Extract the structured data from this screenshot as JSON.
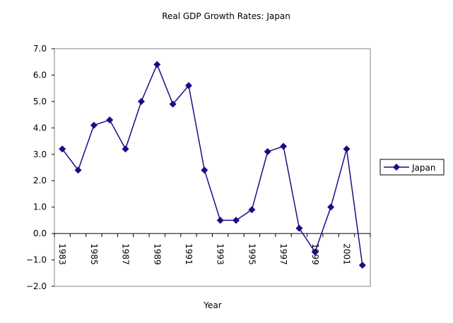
{
  "chart_data": {
    "type": "line",
    "title": "Real GDP Growth Rates: Japan",
    "xlabel": "Year",
    "ylabel": "",
    "ylim": [
      -2.0,
      7.0
    ],
    "yticks": [
      "-2.0",
      "-1.0",
      "0.0",
      "1.0",
      "2.0",
      "3.0",
      "4.0",
      "5.0",
      "6.0",
      "7.0"
    ],
    "grid": false,
    "legend": "right",
    "categories": [
      "1983",
      "1984",
      "1985",
      "1986",
      "1987",
      "1988",
      "1989",
      "1990",
      "1991",
      "1992",
      "1993",
      "1994",
      "1995",
      "1996",
      "1997",
      "1998",
      "1999",
      "2000",
      "2001",
      "2002"
    ],
    "xtick_labels": [
      "1983",
      "1985",
      "1987",
      "1989",
      "1991",
      "1993",
      "1995",
      "1997",
      "1999",
      "2001"
    ],
    "series": [
      {
        "name": "Japan",
        "color": "#1e0a82",
        "marker": "diamond",
        "values": [
          3.2,
          2.4,
          4.1,
          4.3,
          3.2,
          5.0,
          6.4,
          4.9,
          5.6,
          2.4,
          0.5,
          0.5,
          0.9,
          3.1,
          3.3,
          0.2,
          -0.7,
          1.0,
          3.2,
          -1.2
        ]
      }
    ]
  }
}
